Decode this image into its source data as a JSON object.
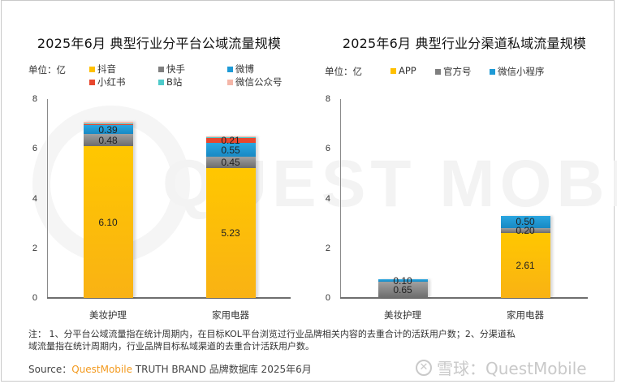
{
  "left": {
    "title": "2025年6月 典型行业分平台公域流量规模",
    "unit": "单位：亿",
    "legend": [
      {
        "label": "抖音",
        "color": "#FFC000"
      },
      {
        "label": "快手",
        "color": "#7F7F7F"
      },
      {
        "label": "微博",
        "color": "#1E9AD6"
      },
      {
        "label": "小红书",
        "color": "#E8472E"
      },
      {
        "label": "B站",
        "color": "#4ECACA"
      },
      {
        "label": "微信公众号",
        "color": "#F4B6A8"
      }
    ]
  },
  "right": {
    "title": "2025年6月 典型行业分渠道私域流量规模",
    "unit": "单位：亿",
    "legend": [
      {
        "label": "APP",
        "color": "#FFC000"
      },
      {
        "label": "官方号",
        "color": "#7F7F7F"
      },
      {
        "label": "微信小程序",
        "color": "#1E9AD6"
      }
    ]
  },
  "notes": {
    "line1": "注：  1、分平台公域流量指在统计周期内，在目标KOL平台浏览过行业品牌相关内容的去重合计的活跃用户数；2、分渠道私",
    "line2": "域流量指在统计周期内，行业品牌目标私域渠道的去重合计活跃用户数。"
  },
  "source": {
    "prefix": "Source：",
    "brand": "QuestMobile",
    "rest": " TRUTH BRAND 品牌数据库 2025年6月"
  },
  "watermark": {
    "text": "QUEST MOBILE",
    "xueqiu_icon": "xueqiu-logo-icon",
    "xueqiu": "雪球：QuestMobile"
  },
  "chart_data": [
    {
      "type": "bar",
      "stacked": true,
      "title": "2025年6月 典型行业分平台公域流量规模",
      "ylabel": "单位：亿",
      "ylim": [
        0,
        8
      ],
      "yticks": [
        0,
        2,
        4,
        6,
        8
      ],
      "categories": [
        "美妆护理",
        "家用电器"
      ],
      "series": [
        {
          "name": "抖音",
          "color": "#FFC000",
          "values": [
            6.1,
            5.23
          ],
          "labels": [
            "6.10",
            "5.23"
          ]
        },
        {
          "name": "快手",
          "color": "#808080",
          "values": [
            0.48,
            0.45
          ],
          "labels": [
            "0.48",
            "0.45"
          ]
        },
        {
          "name": "微博",
          "color": "#1E9AD6",
          "values": [
            0.39,
            0.55
          ],
          "labels": [
            "0.39",
            "0.55"
          ]
        },
        {
          "name": "小红书",
          "color": "#E8472E",
          "values": [
            0.05,
            0.21
          ],
          "labels": [
            "",
            "0.21"
          ]
        },
        {
          "name": "B站",
          "color": "#4ECACA",
          "values": [
            0.01,
            0.02
          ],
          "labels": [
            "",
            ""
          ]
        },
        {
          "name": "微信公众号",
          "color": "#F4B6A8",
          "values": [
            0.04,
            0.05
          ],
          "labels": [
            "",
            ""
          ]
        }
      ],
      "grid": false,
      "legend_position": "top"
    },
    {
      "type": "bar",
      "stacked": true,
      "title": "2025年6月 典型行业分渠道私域流量规模",
      "ylabel": "单位：亿",
      "ylim": [
        0,
        8
      ],
      "yticks": [
        0,
        2,
        4,
        6,
        8
      ],
      "categories": [
        "美妆护理",
        "家用电器"
      ],
      "series": [
        {
          "name": "APP",
          "color": "#FFC000",
          "values": [
            0.0,
            2.61
          ],
          "labels": [
            "",
            "2.61"
          ]
        },
        {
          "name": "官方号",
          "color": "#808080",
          "values": [
            0.65,
            0.2
          ],
          "labels": [
            "0.65",
            "0.20"
          ]
        },
        {
          "name": "微信小程序",
          "color": "#1E9AD6",
          "values": [
            0.1,
            0.5
          ],
          "labels": [
            "0.10",
            "0.50"
          ]
        }
      ],
      "grid": false,
      "legend_position": "top"
    }
  ]
}
